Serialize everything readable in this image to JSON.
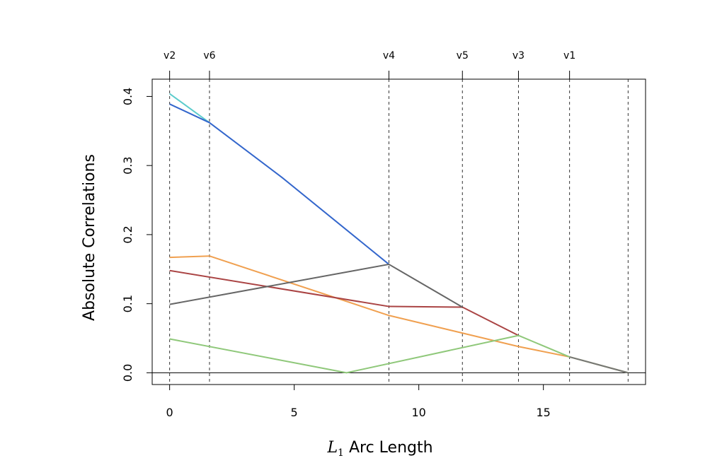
{
  "chart_data": {
    "type": "line",
    "xlabel": {
      "var": "L",
      "sub": "1",
      "rest": " Arc Length"
    },
    "ylabel": "Absolute Correlations",
    "xlim": [
      -0.7,
      19.1
    ],
    "ylim": [
      -0.017,
      0.425
    ],
    "xticks": [
      0,
      5,
      10,
      15
    ],
    "yticks": [
      0.0,
      0.1,
      0.2,
      0.3,
      0.4
    ],
    "ytick_labels": [
      "0.0",
      "0.1",
      "0.2",
      "0.3",
      "0.4"
    ],
    "zero_line": true,
    "breakpoints": [
      {
        "x": 0,
        "label": "v2"
      },
      {
        "x": 1.6,
        "label": "v6"
      },
      {
        "x": 8.8,
        "label": "v4"
      },
      {
        "x": 11.75,
        "label": "v5"
      },
      {
        "x": 14.0,
        "label": "v3"
      },
      {
        "x": 16.05,
        "label": "v1"
      },
      {
        "x": 18.4,
        "label": ""
      }
    ],
    "series": [
      {
        "color": "#5ccccc",
        "points": [
          [
            0,
            0.404
          ],
          [
            1.6,
            0.362
          ]
        ]
      },
      {
        "color": "#3366cc",
        "points": [
          [
            0,
            0.389
          ],
          [
            1.6,
            0.362
          ],
          [
            4.5,
            0.283
          ],
          [
            8.8,
            0.157
          ]
        ]
      },
      {
        "color": "#f0a050",
        "points": [
          [
            0,
            0.167
          ],
          [
            1.6,
            0.169
          ],
          [
            8.8,
            0.083
          ],
          [
            14.0,
            0.038
          ],
          [
            16.05,
            0.023
          ],
          [
            18.4,
            0.0
          ]
        ]
      },
      {
        "color": "#aa4444",
        "points": [
          [
            0,
            0.148
          ],
          [
            8.8,
            0.096
          ],
          [
            11.75,
            0.095
          ],
          [
            14.0,
            0.054
          ]
        ]
      },
      {
        "color": "#666666",
        "points": [
          [
            0,
            0.099
          ],
          [
            8.8,
            0.157
          ],
          [
            11.75,
            0.095
          ]
        ]
      },
      {
        "color": "#8fc87a",
        "points": [
          [
            0,
            0.049
          ],
          [
            7.1,
            0.0
          ],
          [
            14.0,
            0.054
          ],
          [
            16.05,
            0.023
          ],
          [
            18.4,
            0.0
          ]
        ]
      },
      {
        "color": "#777777",
        "points": [
          [
            16.05,
            0.023
          ],
          [
            18.4,
            0.0
          ]
        ]
      }
    ]
  }
}
